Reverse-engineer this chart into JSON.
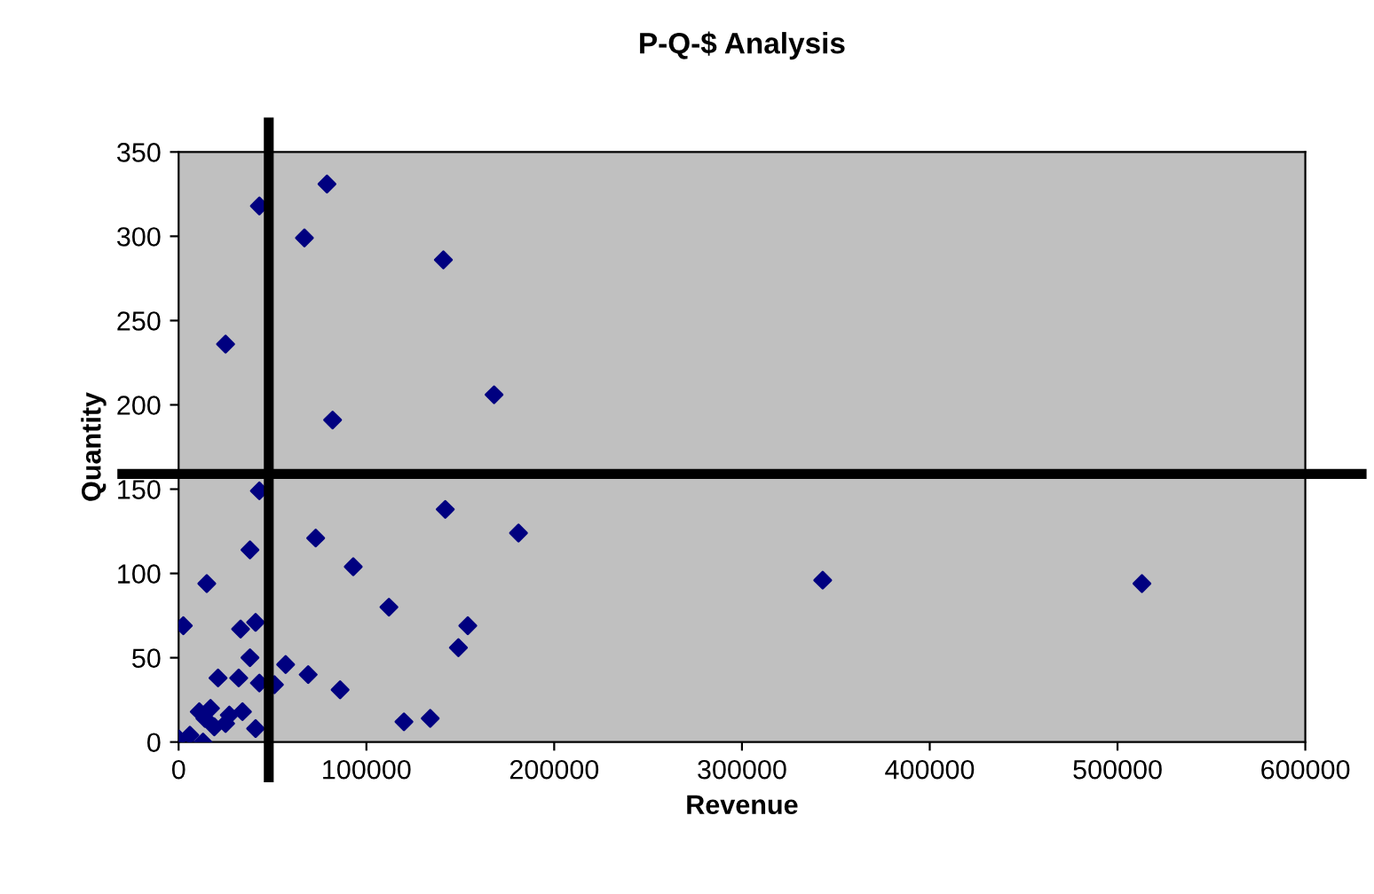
{
  "chart_data": {
    "type": "scatter",
    "title": "P-Q-$ Analysis",
    "xlabel": "Revenue",
    "ylabel": "Quantity",
    "xlim": [
      0,
      600000
    ],
    "ylim": [
      0,
      350
    ],
    "xticks": [
      0,
      100000,
      200000,
      300000,
      400000,
      500000,
      600000
    ],
    "yticks": [
      0,
      50,
      100,
      150,
      200,
      250,
      300,
      350
    ],
    "grid": false,
    "legend": false,
    "marker": "diamond",
    "series": [
      {
        "color": "#000080",
        "x": [
          79000,
          43000,
          67000,
          141000,
          25000,
          168000,
          82000,
          43000,
          142000,
          181000,
          73000,
          38000,
          93000,
          15000,
          112000,
          154000,
          2500,
          33000,
          41000,
          149000,
          38000,
          57000,
          69000,
          21000,
          32000,
          43000,
          51000,
          86000,
          134000,
          120000,
          0,
          6000,
          11000,
          14000,
          19000,
          25000,
          13000,
          34000,
          41000,
          27000,
          17000,
          343000,
          513000
        ],
        "values": [
          331,
          318,
          299,
          286,
          236,
          206,
          191,
          149,
          138,
          124,
          121,
          114,
          104,
          94,
          80,
          69,
          69,
          67,
          71,
          56,
          50,
          46,
          40,
          38,
          38,
          35,
          34,
          31,
          14,
          12,
          2,
          4,
          18,
          14,
          9,
          11,
          0,
          18,
          8,
          16,
          20,
          96,
          94
        ]
      }
    ],
    "ref_lines": [
      {
        "axis": "x",
        "value": 48000,
        "color": "#000000"
      },
      {
        "axis": "y",
        "value": 159,
        "color": "#000000"
      }
    ]
  }
}
